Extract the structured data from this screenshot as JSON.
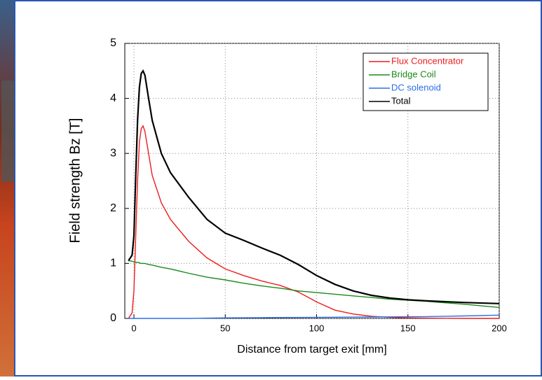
{
  "chart_data": {
    "type": "line",
    "x_label": "Distance from target exit [mm]",
    "y_label": "Field strength Bz [T]",
    "x": [
      -3,
      -1,
      0,
      1,
      2,
      3,
      4,
      5,
      6,
      8,
      10,
      15,
      20,
      30,
      40,
      50,
      60,
      70,
      80,
      90,
      100,
      110,
      120,
      130,
      140,
      150,
      160,
      180,
      200
    ],
    "series": [
      {
        "name": "Flux Concentrator",
        "color": "#ee1c1c",
        "values": [
          0,
          0.1,
          0.5,
          1.5,
          2.5,
          3.2,
          3.45,
          3.5,
          3.4,
          3.0,
          2.6,
          2.1,
          1.8,
          1.4,
          1.1,
          0.9,
          0.78,
          0.68,
          0.6,
          0.48,
          0.3,
          0.15,
          0.08,
          0.04,
          0.02,
          0.01,
          0.005,
          0,
          0
        ]
      },
      {
        "name": "Bridge Coil",
        "color": "#1a8a1a",
        "values": [
          1.05,
          1.04,
          1.03,
          1.02,
          1.02,
          1.01,
          1.0,
          1.0,
          1.0,
          0.98,
          0.97,
          0.93,
          0.9,
          0.82,
          0.75,
          0.7,
          0.64,
          0.59,
          0.55,
          0.5,
          0.47,
          0.44,
          0.41,
          0.38,
          0.35,
          0.33,
          0.31,
          0.26,
          0.2
        ]
      },
      {
        "name": "DC solenoid",
        "color": "#2a6fe8",
        "values": [
          0,
          0,
          0,
          0,
          0,
          0,
          0,
          0,
          0,
          0,
          0,
          0,
          0,
          0,
          0.005,
          0.01,
          0.012,
          0.014,
          0.016,
          0.018,
          0.02,
          0.022,
          0.024,
          0.026,
          0.028,
          0.03,
          0.033,
          0.045,
          0.06
        ]
      },
      {
        "name": "Total",
        "color": "#000000",
        "values": [
          1.05,
          1.15,
          1.5,
          2.6,
          3.6,
          4.2,
          4.45,
          4.5,
          4.42,
          4.0,
          3.6,
          3.0,
          2.65,
          2.2,
          1.8,
          1.55,
          1.42,
          1.28,
          1.15,
          0.98,
          0.78,
          0.62,
          0.5,
          0.42,
          0.37,
          0.34,
          0.32,
          0.29,
          0.27
        ]
      }
    ],
    "xlim": [
      -5,
      200
    ],
    "xticks": [
      0,
      50,
      100,
      150,
      200
    ],
    "ylim": [
      0,
      5
    ],
    "yticks": [
      0,
      1,
      2,
      3,
      4,
      5
    ],
    "grid": true,
    "legend": "upper right"
  }
}
